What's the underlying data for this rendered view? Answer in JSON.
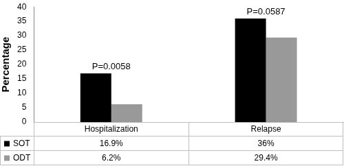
{
  "chart_data": {
    "type": "bar",
    "y_label": "Percentage",
    "categories": [
      "Hospitalization",
      "Relapse"
    ],
    "series": [
      {
        "name": "SOT",
        "color": "#000000",
        "values": [
          16.9,
          36
        ],
        "value_labels": [
          "16.9%",
          "36%"
        ]
      },
      {
        "name": "ODT",
        "color": "#999999",
        "values": [
          6.2,
          29.4
        ],
        "value_labels": [
          "6.2%",
          "29.4%"
        ]
      }
    ],
    "ylim": [
      0,
      40
    ],
    "yticks": [
      0,
      5,
      10,
      15,
      20,
      25,
      30,
      35,
      40
    ],
    "grid": false,
    "annotations": [
      {
        "category": "Hospitalization",
        "text": "P=0.0058"
      },
      {
        "category": "Relapse",
        "text": "P=0.0587"
      }
    ]
  }
}
